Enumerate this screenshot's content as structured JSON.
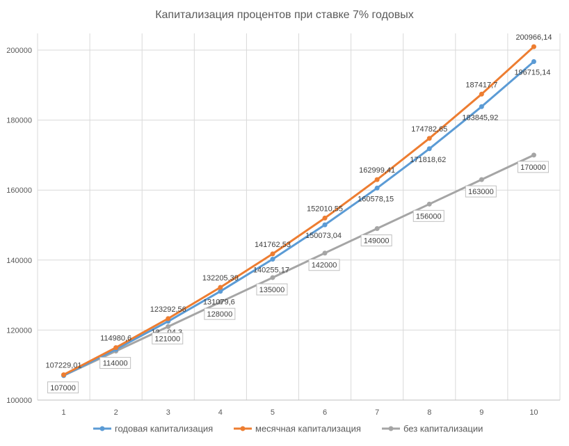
{
  "chart_data": {
    "type": "line",
    "title": "Капитализация процентов при ставке 7% годовых",
    "xlabel": "",
    "ylabel": "",
    "categories": [
      "1",
      "2",
      "3",
      "4",
      "5",
      "6",
      "7",
      "8",
      "9",
      "10"
    ],
    "ylim": [
      100000,
      200000
    ],
    "yticks": [
      "100000",
      "120000",
      "140000",
      "160000",
      "180000",
      "200000"
    ],
    "grid": true,
    "legend_position": "bottom",
    "series": [
      {
        "name": "годовая капитализация",
        "color": "#5B9BD5",
        "values": [
          107000,
          114490,
          122504.3,
          131079.6,
          140255.17,
          150073.04,
          160578.15,
          171818.62,
          183845.92,
          196715.14
        ],
        "labels": [
          "",
          "",
          "12…04,3",
          "131079,6",
          "140255,17",
          "150073,04",
          "160578,15",
          "171818,62",
          "183845,92",
          "196715,14"
        ]
      },
      {
        "name": "месячная капитализация",
        "color": "#ED7D31",
        "values": [
          107229.01,
          114980.6,
          123292.56,
          132205.39,
          141762.53,
          152010.55,
          162999.41,
          174782.65,
          187417.7,
          200966.14
        ],
        "labels": [
          "107229,01",
          "114980,6",
          "123292,56",
          "132205,39",
          "141762,53",
          "152010,55",
          "162999,41",
          "174782,65",
          "187417,7",
          "200966,14"
        ]
      },
      {
        "name": "без капитализации",
        "color": "#A5A5A5",
        "values": [
          107000,
          114000,
          121000,
          128000,
          135000,
          142000,
          149000,
          156000,
          163000,
          170000
        ],
        "labels": [
          "107000",
          "114000",
          "121000",
          "128000",
          "135000",
          "142000",
          "149000",
          "156000",
          "163000",
          "170000"
        ]
      }
    ]
  }
}
